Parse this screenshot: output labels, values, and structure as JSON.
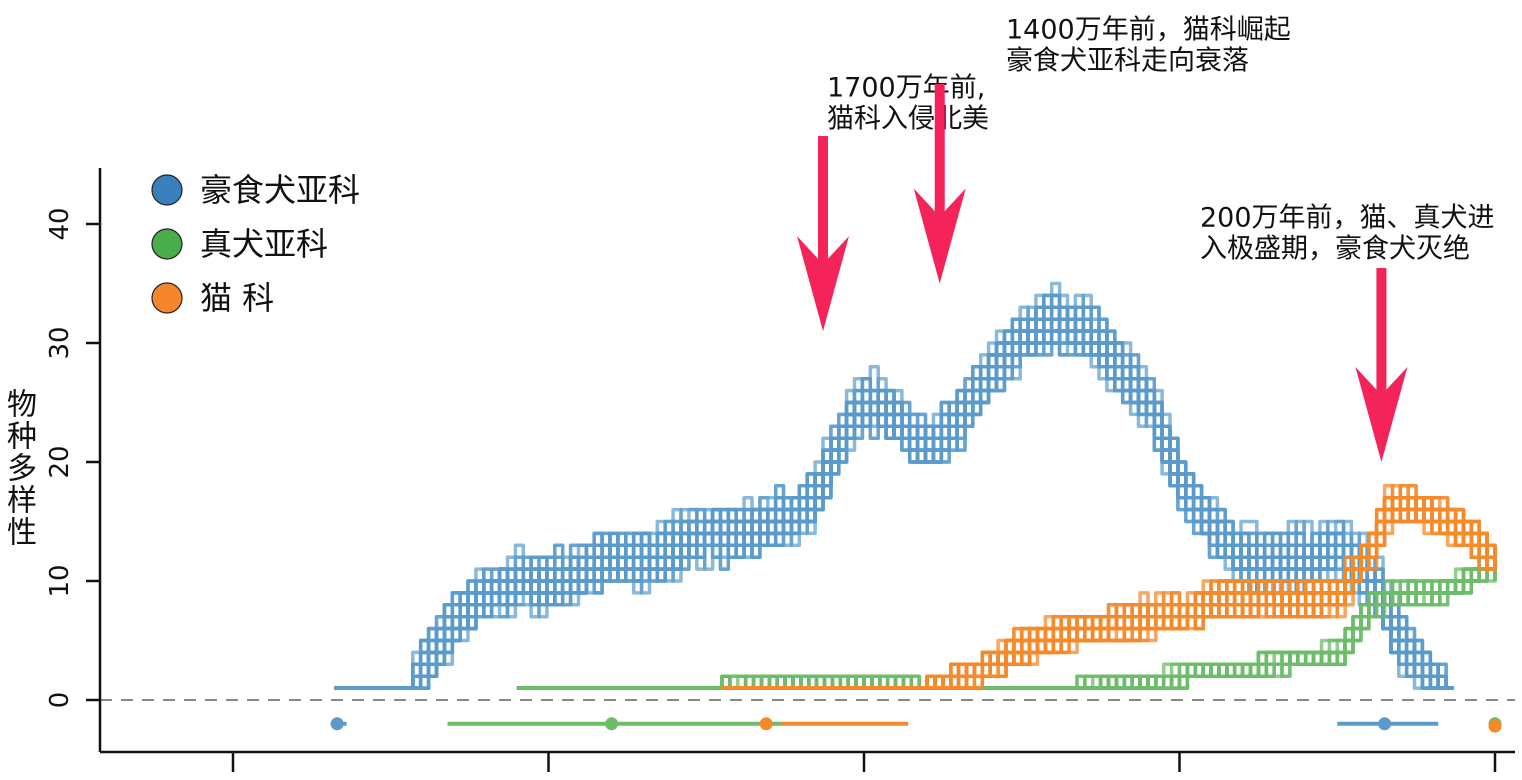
{
  "chart_data": {
    "type": "line",
    "title": "",
    "xlabel": "",
    "ylabel": "物种多样性",
    "ylim": [
      -5,
      45
    ],
    "xlim": [
      -42,
      0
    ],
    "x_ticks": [
      -40,
      -30,
      -20,
      -10,
      0
    ],
    "x_tick_labels_shown": false,
    "y_ticks": [
      0,
      10,
      20,
      30,
      40
    ],
    "reference_line": {
      "y": 0,
      "style": "dashed"
    },
    "grid": false,
    "legend": {
      "placement": "top-left",
      "entries": [
        {
          "label": "豪食犬亚科",
          "color": "#3a7fbd"
        },
        {
          "label": "真犬亚科",
          "color": "#4aac4a"
        },
        {
          "label": "猫 科",
          "color": "#f5862b"
        }
      ]
    },
    "series": [
      {
        "name": "豪食犬亚科",
        "color": "#5a9bcb",
        "x": [
          -36.8,
          -34.5,
          -33.8,
          -33,
          -32,
          -31,
          -30,
          -29,
          -28,
          -27,
          -26,
          -25,
          -24,
          -23,
          -22,
          -21.5,
          -21,
          -20.5,
          -19.8,
          -19.2,
          -18.5,
          -17.8,
          -17,
          -16,
          -15,
          -14,
          -13,
          -12,
          -11,
          -10.5,
          -10,
          -9.2,
          -8.5,
          -7.8,
          -7,
          -6.2,
          -5.8,
          -5.2,
          -4.6,
          -3.8,
          -3.3,
          -2.8,
          -2.2,
          -1.6,
          -1.2
        ],
        "values": [
          1,
          1,
          4,
          7,
          9,
          10,
          10,
          11,
          12,
          12,
          13,
          14,
          14,
          15,
          16,
          18,
          21,
          24,
          25,
          24,
          22,
          22,
          24,
          28,
          31,
          32,
          31,
          28,
          25,
          21,
          18,
          15,
          13,
          12,
          12,
          12,
          12,
          13,
          12,
          9,
          6,
          4,
          2,
          1,
          1
        ]
      },
      {
        "name": "真犬亚科",
        "color": "#6cbc6a",
        "x": [
          -31,
          -28,
          -25,
          -22,
          -20,
          -19,
          -18,
          -16,
          -14,
          -12,
          -10,
          -8,
          -6,
          -5,
          -4.5,
          -4,
          -3,
          -2,
          -1,
          -0.5,
          -0.2,
          0
        ],
        "values": [
          1,
          1,
          1,
          1.5,
          1.5,
          1.2,
          1,
          1,
          1,
          1.2,
          2,
          2.8,
          3.5,
          4,
          6,
          8,
          9,
          9,
          10,
          11,
          11,
          11
        ]
      },
      {
        "name": "猫 科",
        "color": "#f58a2b",
        "x": [
          -24.5,
          -22,
          -20,
          -18.2,
          -17,
          -16,
          -15,
          -14,
          -13,
          -12,
          -11,
          -10,
          -9,
          -8,
          -7,
          -6,
          -5,
          -4,
          -3.5,
          -3,
          -2.5,
          -2,
          -1.5,
          -1,
          -0.5,
          -0.2,
          0
        ],
        "values": [
          1,
          1,
          1,
          1,
          2,
          3,
          4.5,
          5.5,
          6,
          6.5,
          7,
          7.5,
          8.5,
          8.5,
          8.5,
          8.5,
          9,
          13,
          16,
          16.5,
          16,
          15.5,
          15,
          14,
          13,
          12,
          12
        ]
      }
    ],
    "origin_estimates": [
      {
        "series": "豪食犬亚科",
        "point": -36.7,
        "range": [
          -36.9,
          -36.4
        ],
        "y": -2
      },
      {
        "series": "真犬亚科",
        "point": -28,
        "range": [
          -33.2,
          -22.6
        ],
        "y": -2
      },
      {
        "series": "猫 科",
        "point": -23.1,
        "range": [
          -22.6,
          -18.6
        ],
        "y": -2
      },
      {
        "series": "豪食犬亚科",
        "point": -3.5,
        "range": [
          -5,
          -1.8
        ],
        "y": -2
      },
      {
        "series": "真犬亚科",
        "point": 0,
        "range": [
          -0.1,
          0
        ],
        "y": -2
      },
      {
        "series": "猫 科",
        "point": 0,
        "range": [
          -0.1,
          0
        ],
        "y": -2.2
      }
    ],
    "annotations": [
      {
        "lines": [
          "1700万年前,",
          "猫科入侵北美"
        ],
        "x": -21.3,
        "y": 31
      },
      {
        "lines": [
          "1400万年前，猫科崛起",
          "豪食犬亚科走向衰落"
        ],
        "x": -17.6,
        "y": 35
      },
      {
        "lines": [
          "200万年前，猫、真犬进",
          "入极盛期，豪食犬灭绝"
        ],
        "x": -3.6,
        "y": 20
      }
    ],
    "annotation_color": "#f4245a"
  }
}
